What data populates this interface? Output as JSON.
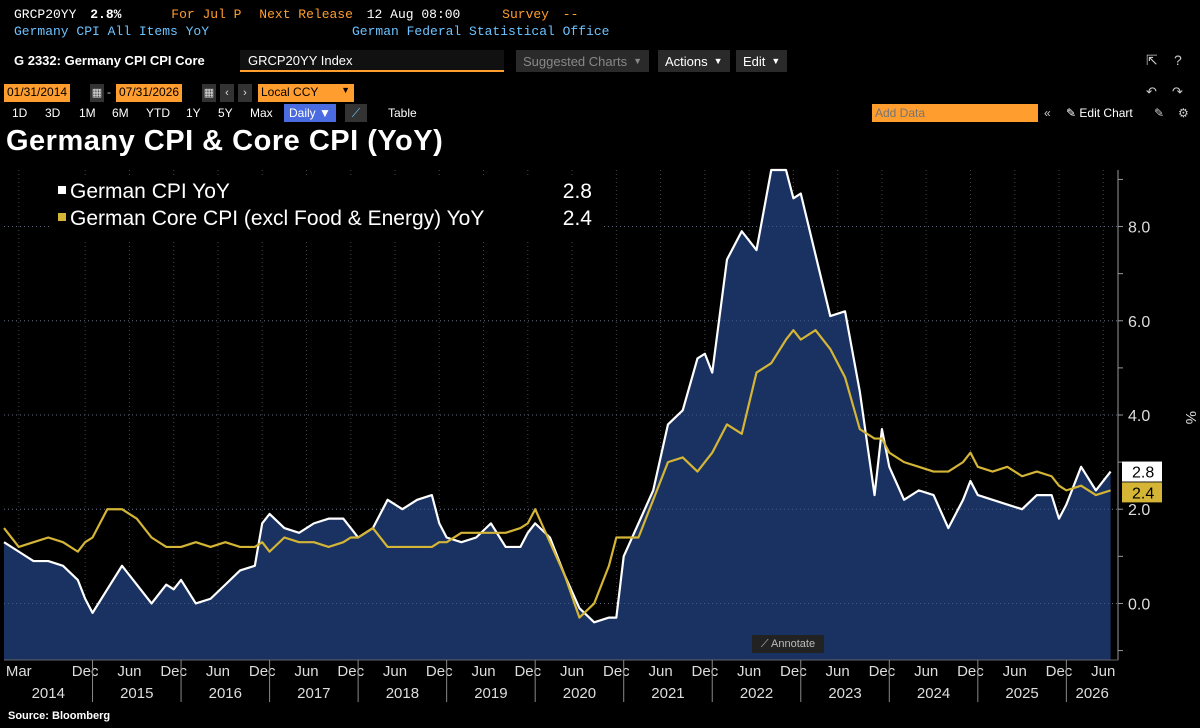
{
  "info": {
    "ticker": "GRCP20YY",
    "last_value": "2.8%",
    "period": "For Jul P",
    "next_release_label": "Next Release",
    "next_release_value": "12 Aug 08:00",
    "survey_label": "Survey",
    "survey_value": "--",
    "description": "Germany CPI All Items YoY",
    "source_agency": "German Federal Statistical Office"
  },
  "toolbar": {
    "chart_id": "G 2332: Germany CPI CPI Core",
    "security": "GRCP20YY Index",
    "suggested_charts": "Suggested Charts",
    "actions": "Actions",
    "edit": "Edit"
  },
  "dates": {
    "start": "01/31/2014",
    "end": "07/31/2026",
    "currency": "Local CCY"
  },
  "ranges": [
    "1D",
    "3D",
    "1M",
    "6M",
    "YTD",
    "1Y",
    "5Y",
    "Max"
  ],
  "frequency": "Daily",
  "table_label": "Table",
  "add_data_placeholder": "Add Data",
  "edit_chart": "Edit Chart",
  "title": "Germany CPI & Core CPI (YoY)",
  "annotate": "Annotate",
  "source": "Source: Bloomberg",
  "icons": [
    "export-icon",
    "help-icon",
    "undo-icon",
    "redo-icon",
    "pencil-icon",
    "gear-icon",
    "chart-type-icon",
    "collapse-icon"
  ],
  "chart_data": {
    "type": "line",
    "ylabel": "%",
    "ylim": [
      -1.2,
      9.2
    ],
    "yticks": [
      0.0,
      2.0,
      4.0,
      6.0,
      8.0
    ],
    "ytick_labels": [
      "0.0",
      "2.0",
      "4.0",
      "6.0",
      "8.0"
    ],
    "x_tick_months": [
      "Mar",
      "Dec",
      "Jun",
      "Dec",
      "Jun",
      "Dec",
      "Jun",
      "Dec",
      "Jun",
      "Dec",
      "Jun",
      "Dec",
      "Jun",
      "Dec",
      "Jun",
      "Dec",
      "Jun",
      "Dec",
      "Jun",
      "Dec",
      "Jun",
      "Dec",
      "Jun",
      "Dec",
      "Jun"
    ],
    "x_tick_dates": [
      "2014-03",
      "2014-12",
      "2015-06",
      "2015-12",
      "2016-06",
      "2016-12",
      "2017-06",
      "2017-12",
      "2018-06",
      "2018-12",
      "2019-06",
      "2019-12",
      "2020-06",
      "2020-12",
      "2021-06",
      "2021-12",
      "2022-06",
      "2022-12",
      "2023-06",
      "2023-12",
      "2024-06",
      "2024-12",
      "2025-06",
      "2025-12",
      "2026-06"
    ],
    "years": [
      "2014",
      "2015",
      "2016",
      "2017",
      "2018",
      "2019",
      "2020",
      "2021",
      "2022",
      "2023",
      "2024",
      "2025",
      "2026"
    ],
    "series": [
      {
        "name": "German CPI YoY",
        "legend_value": "2.8",
        "last_label": "2.8",
        "color": "#ffffff",
        "fill": "#1b3566",
        "points": [
          [
            "2014-01",
            1.3
          ],
          [
            "2014-03",
            1.1
          ],
          [
            "2014-05",
            0.9
          ],
          [
            "2014-07",
            0.9
          ],
          [
            "2014-09",
            0.8
          ],
          [
            "2014-11",
            0.5
          ],
          [
            "2014-12",
            0.1
          ],
          [
            "2015-01",
            -0.2
          ],
          [
            "2015-03",
            0.3
          ],
          [
            "2015-05",
            0.8
          ],
          [
            "2015-07",
            0.4
          ],
          [
            "2015-09",
            0.0
          ],
          [
            "2015-11",
            0.4
          ],
          [
            "2015-12",
            0.3
          ],
          [
            "2016-01",
            0.5
          ],
          [
            "2016-03",
            0.0
          ],
          [
            "2016-05",
            0.1
          ],
          [
            "2016-07",
            0.4
          ],
          [
            "2016-09",
            0.7
          ],
          [
            "2016-11",
            0.8
          ],
          [
            "2016-12",
            1.7
          ],
          [
            "2017-01",
            1.9
          ],
          [
            "2017-03",
            1.6
          ],
          [
            "2017-05",
            1.5
          ],
          [
            "2017-07",
            1.7
          ],
          [
            "2017-09",
            1.8
          ],
          [
            "2017-11",
            1.8
          ],
          [
            "2017-12",
            1.6
          ],
          [
            "2018-01",
            1.4
          ],
          [
            "2018-03",
            1.6
          ],
          [
            "2018-05",
            2.2
          ],
          [
            "2018-07",
            2.0
          ],
          [
            "2018-09",
            2.2
          ],
          [
            "2018-11",
            2.3
          ],
          [
            "2018-12",
            1.7
          ],
          [
            "2019-01",
            1.4
          ],
          [
            "2019-03",
            1.3
          ],
          [
            "2019-05",
            1.4
          ],
          [
            "2019-07",
            1.7
          ],
          [
            "2019-09",
            1.2
          ],
          [
            "2019-11",
            1.2
          ],
          [
            "2019-12",
            1.5
          ],
          [
            "2020-01",
            1.7
          ],
          [
            "2020-03",
            1.4
          ],
          [
            "2020-05",
            0.6
          ],
          [
            "2020-07",
            -0.1
          ],
          [
            "2020-09",
            -0.4
          ],
          [
            "2020-11",
            -0.3
          ],
          [
            "2020-12",
            -0.3
          ],
          [
            "2021-01",
            1.0
          ],
          [
            "2021-03",
            1.7
          ],
          [
            "2021-05",
            2.4
          ],
          [
            "2021-07",
            3.8
          ],
          [
            "2021-09",
            4.1
          ],
          [
            "2021-11",
            5.2
          ],
          [
            "2021-12",
            5.3
          ],
          [
            "2022-01",
            4.9
          ],
          [
            "2022-03",
            7.3
          ],
          [
            "2022-05",
            7.9
          ],
          [
            "2022-07",
            7.5
          ],
          [
            "2022-09",
            10.0
          ],
          [
            "2022-11",
            10.0
          ],
          [
            "2022-12",
            8.6
          ],
          [
            "2023-01",
            8.7
          ],
          [
            "2023-03",
            7.4
          ],
          [
            "2023-05",
            6.1
          ],
          [
            "2023-07",
            6.2
          ],
          [
            "2023-09",
            4.5
          ],
          [
            "2023-11",
            2.3
          ],
          [
            "2023-12",
            3.7
          ],
          [
            "2024-01",
            2.9
          ],
          [
            "2024-03",
            2.2
          ],
          [
            "2024-05",
            2.4
          ],
          [
            "2024-07",
            2.3
          ],
          [
            "2024-09",
            1.6
          ],
          [
            "2024-11",
            2.2
          ],
          [
            "2024-12",
            2.6
          ],
          [
            "2025-01",
            2.3
          ],
          [
            "2025-03",
            2.2
          ],
          [
            "2025-05",
            2.1
          ],
          [
            "2025-07",
            2.0
          ],
          [
            "2025-09",
            2.3
          ],
          [
            "2025-11",
            2.3
          ],
          [
            "2025-12",
            1.8
          ],
          [
            "2026-01",
            2.1
          ],
          [
            "2026-03",
            2.9
          ],
          [
            "2026-05",
            2.4
          ],
          [
            "2026-07",
            2.8
          ]
        ]
      },
      {
        "name": "German Core CPI (excl Food & Energy) YoY",
        "legend_value": "2.4",
        "last_label": "2.4",
        "color": "#d4b536",
        "points": [
          [
            "2014-01",
            1.6
          ],
          [
            "2014-03",
            1.2
          ],
          [
            "2014-05",
            1.3
          ],
          [
            "2014-07",
            1.4
          ],
          [
            "2014-09",
            1.3
          ],
          [
            "2014-11",
            1.1
          ],
          [
            "2014-12",
            1.3
          ],
          [
            "2015-01",
            1.4
          ],
          [
            "2015-03",
            2.0
          ],
          [
            "2015-05",
            2.0
          ],
          [
            "2015-07",
            1.8
          ],
          [
            "2015-09",
            1.4
          ],
          [
            "2015-11",
            1.2
          ],
          [
            "2015-12",
            1.2
          ],
          [
            "2016-01",
            1.2
          ],
          [
            "2016-03",
            1.3
          ],
          [
            "2016-05",
            1.2
          ],
          [
            "2016-07",
            1.3
          ],
          [
            "2016-09",
            1.2
          ],
          [
            "2016-11",
            1.2
          ],
          [
            "2016-12",
            1.3
          ],
          [
            "2017-01",
            1.1
          ],
          [
            "2017-03",
            1.4
          ],
          [
            "2017-05",
            1.3
          ],
          [
            "2017-07",
            1.3
          ],
          [
            "2017-09",
            1.2
          ],
          [
            "2017-11",
            1.3
          ],
          [
            "2017-12",
            1.4
          ],
          [
            "2018-01",
            1.4
          ],
          [
            "2018-03",
            1.6
          ],
          [
            "2018-05",
            1.2
          ],
          [
            "2018-07",
            1.2
          ],
          [
            "2018-09",
            1.2
          ],
          [
            "2018-11",
            1.2
          ],
          [
            "2018-12",
            1.3
          ],
          [
            "2019-01",
            1.3
          ],
          [
            "2019-03",
            1.5
          ],
          [
            "2019-05",
            1.5
          ],
          [
            "2019-07",
            1.5
          ],
          [
            "2019-09",
            1.5
          ],
          [
            "2019-11",
            1.6
          ],
          [
            "2019-12",
            1.7
          ],
          [
            "2020-01",
            2.0
          ],
          [
            "2020-03",
            1.3
          ],
          [
            "2020-05",
            0.6
          ],
          [
            "2020-07",
            -0.3
          ],
          [
            "2020-09",
            0.0
          ],
          [
            "2020-11",
            0.8
          ],
          [
            "2020-12",
            1.4
          ],
          [
            "2021-01",
            1.4
          ],
          [
            "2021-03",
            1.4
          ],
          [
            "2021-05",
            2.2
          ],
          [
            "2021-07",
            3.0
          ],
          [
            "2021-09",
            3.1
          ],
          [
            "2021-11",
            2.8
          ],
          [
            "2021-12",
            3.0
          ],
          [
            "2022-01",
            3.2
          ],
          [
            "2022-03",
            3.8
          ],
          [
            "2022-05",
            3.6
          ],
          [
            "2022-07",
            4.9
          ],
          [
            "2022-09",
            5.1
          ],
          [
            "2022-11",
            5.6
          ],
          [
            "2022-12",
            5.8
          ],
          [
            "2023-01",
            5.6
          ],
          [
            "2023-03",
            5.8
          ],
          [
            "2023-05",
            5.4
          ],
          [
            "2023-07",
            4.8
          ],
          [
            "2023-09",
            3.7
          ],
          [
            "2023-11",
            3.5
          ],
          [
            "2023-12",
            3.5
          ],
          [
            "2024-01",
            3.2
          ],
          [
            "2024-03",
            3.0
          ],
          [
            "2024-05",
            2.9
          ],
          [
            "2024-07",
            2.8
          ],
          [
            "2024-09",
            2.8
          ],
          [
            "2024-11",
            3.0
          ],
          [
            "2024-12",
            3.2
          ],
          [
            "2025-01",
            2.9
          ],
          [
            "2025-03",
            2.8
          ],
          [
            "2025-05",
            2.9
          ],
          [
            "2025-07",
            2.7
          ],
          [
            "2025-09",
            2.8
          ],
          [
            "2025-11",
            2.7
          ],
          [
            "2025-12",
            2.5
          ],
          [
            "2026-01",
            2.4
          ],
          [
            "2026-03",
            2.5
          ],
          [
            "2026-05",
            2.3
          ],
          [
            "2026-07",
            2.4
          ]
        ]
      }
    ]
  }
}
